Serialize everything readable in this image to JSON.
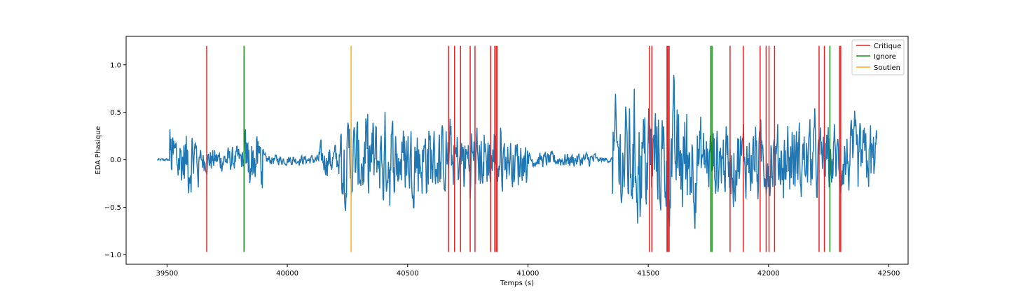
{
  "chart_data": {
    "type": "line",
    "title": "",
    "xlabel": "Temps (s)",
    "ylabel": "EDA Phasique",
    "xlim": [
      39330,
      42580
    ],
    "ylim": [
      -1.1,
      1.3
    ],
    "xticks": [
      39500,
      40000,
      40500,
      41000,
      41500,
      42000,
      42500
    ],
    "xtick_labels": [
      "39500",
      "40000",
      "40500",
      "41000",
      "41500",
      "42000",
      "42500"
    ],
    "yticks": [
      1.0,
      0.5,
      0.0,
      -0.5,
      -1.0
    ],
    "ytick_labels": [
      "1.0",
      "0.5",
      "0.0",
      "−0.5",
      "−1.0"
    ],
    "grid": false,
    "legend_position": "top-right",
    "signal": {
      "color": "#1f77b4",
      "x_start": 39460,
      "x_end": 42450,
      "y_range": [
        -0.97,
        1.2
      ],
      "segments": [
        {
          "x_range": [
            39460,
            39510
          ],
          "amp": 0.02
        },
        {
          "x_range": [
            39510,
            39630
          ],
          "amp": 0.5
        },
        {
          "x_range": [
            39630,
            39820
          ],
          "amp": 0.2
        },
        {
          "x_range": [
            39820,
            39900
          ],
          "amp": 0.45
        },
        {
          "x_range": [
            39900,
            40130
          ],
          "amp": 0.08
        },
        {
          "x_range": [
            40130,
            40220
          ],
          "amp": 0.25
        },
        {
          "x_range": [
            40220,
            40600
          ],
          "amp": 0.6
        },
        {
          "x_range": [
            40600,
            40900
          ],
          "amp": 0.5
        },
        {
          "x_range": [
            40900,
            41000
          ],
          "amp": 0.35
        },
        {
          "x_range": [
            41000,
            41280
          ],
          "amp": 0.12
        },
        {
          "x_range": [
            41280,
            41350
          ],
          "amp": 0.04
        },
        {
          "x_range": [
            41350,
            41700
          ],
          "amp": 0.85
        },
        {
          "x_range": [
            41700,
            42200
          ],
          "amp": 0.55
        },
        {
          "x_range": [
            42200,
            42450
          ],
          "amp": 0.5
        }
      ]
    },
    "series": [
      {
        "name": "Critique",
        "color": "#e82222",
        "type": "vlines",
        "ymin": -0.97,
        "ymax": 1.2,
        "x": [
          39665,
          40670,
          40695,
          40720,
          40760,
          40780,
          40845,
          40862,
          40868,
          40872,
          41505,
          41515,
          41578,
          41582,
          41587,
          41840,
          41895,
          41965,
          41990,
          42002,
          42025,
          42210,
          42232,
          42295,
          42300
        ]
      },
      {
        "name": "Ignore",
        "color": "#1a8c1a",
        "type": "vlines",
        "ymin": -0.97,
        "ymax": 1.2,
        "x": [
          39820,
          41760,
          41765,
          42255
        ]
      },
      {
        "name": "Soutien",
        "color": "#ffab1a",
        "type": "vlines",
        "ymin": -0.97,
        "ymax": 1.2,
        "x": [
          40265
        ]
      }
    ]
  }
}
